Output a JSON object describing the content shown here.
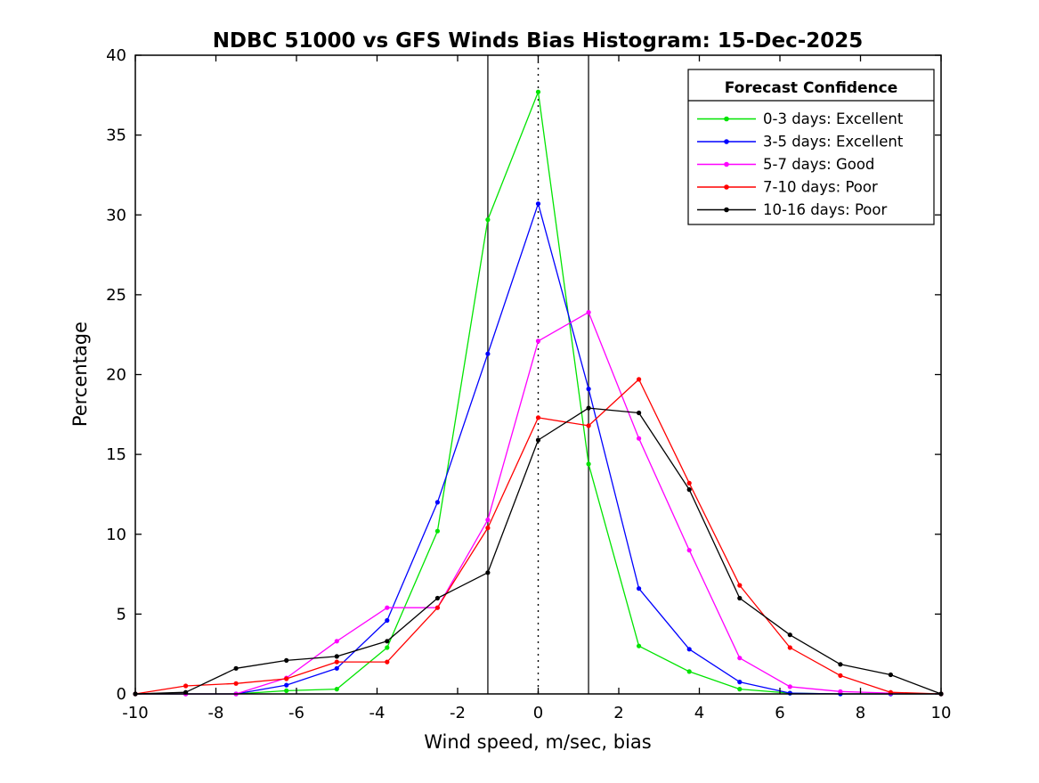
{
  "page": {
    "background": "#ffffff"
  },
  "chart_data": {
    "type": "line",
    "title": "NDBC 51000 vs GFS Winds Bias Histogram: 15-Dec-2025",
    "xlabel": "Wind speed, m/sec, bias",
    "ylabel": "Percentage",
    "xlim": [
      -10,
      10
    ],
    "ylim": [
      0,
      40
    ],
    "xticks": [
      -10,
      -8,
      -6,
      -4,
      -2,
      0,
      2,
      4,
      6,
      8,
      10
    ],
    "yticks": [
      0,
      5,
      10,
      15,
      20,
      25,
      30,
      35,
      40
    ],
    "grid": false,
    "x": [
      -10,
      -8.75,
      -7.5,
      -6.25,
      -5,
      -3.75,
      -2.5,
      -1.25,
      0,
      1.25,
      2.5,
      3.75,
      5,
      6.25,
      7.5,
      8.75,
      10
    ],
    "series": [
      {
        "name": "0-3 days: Excellent",
        "color": "#00e400",
        "marker": "dot",
        "values": [
          0,
          0,
          0,
          0.2,
          0.3,
          2.9,
          10.2,
          29.7,
          37.7,
          14.4,
          3.0,
          1.4,
          0.3,
          0.05,
          0,
          0,
          0
        ]
      },
      {
        "name": "3-5 days: Excellent",
        "color": "#0000ff",
        "marker": "dot",
        "values": [
          0,
          0,
          0,
          0.55,
          1.6,
          4.6,
          12.0,
          21.3,
          30.7,
          19.1,
          6.6,
          2.8,
          0.75,
          0.05,
          0,
          0,
          0
        ]
      },
      {
        "name": "5-7 days: Good",
        "color": "#ff00ff",
        "marker": "dot",
        "values": [
          0,
          0,
          0,
          1.0,
          3.3,
          5.4,
          5.4,
          10.9,
          22.1,
          23.9,
          16.0,
          9.0,
          2.25,
          0.45,
          0.15,
          0.05,
          0
        ]
      },
      {
        "name": "7-10 days: Poor",
        "color": "#ff0000",
        "marker": "dot",
        "values": [
          0,
          0.5,
          0.65,
          0.95,
          2.0,
          2.0,
          5.4,
          10.4,
          17.3,
          16.8,
          19.7,
          13.2,
          6.8,
          2.9,
          1.15,
          0.1,
          0
        ]
      },
      {
        "name": "10-16 days: Poor",
        "color": "#000000",
        "marker": "dot",
        "values": [
          0,
          0.1,
          1.6,
          2.1,
          2.35,
          3.3,
          6.0,
          7.6,
          15.9,
          17.9,
          17.6,
          12.8,
          6.0,
          3.7,
          1.85,
          1.2,
          0
        ]
      }
    ],
    "reference_lines": [
      {
        "x": -1.25,
        "style": "solid",
        "color": "#3c3c3c"
      },
      {
        "x": 0,
        "style": "dotted",
        "color": "#000000"
      },
      {
        "x": 1.25,
        "style": "solid",
        "color": "#3c3c3c"
      }
    ],
    "legend": {
      "title": "Forecast Confidence",
      "position": "top-right"
    }
  }
}
